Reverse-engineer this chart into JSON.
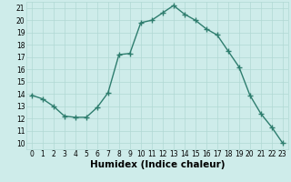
{
  "x": [
    0,
    1,
    2,
    3,
    4,
    5,
    6,
    7,
    8,
    9,
    10,
    11,
    12,
    13,
    14,
    15,
    16,
    17,
    18,
    19,
    20,
    21,
    22,
    23
  ],
  "y": [
    13.9,
    13.6,
    13.0,
    12.2,
    12.1,
    12.1,
    12.9,
    14.1,
    17.2,
    17.3,
    19.8,
    20.0,
    20.6,
    21.2,
    20.5,
    20.0,
    19.3,
    18.8,
    17.5,
    16.2,
    13.9,
    12.4,
    11.3,
    10.0
  ],
  "line_color": "#2e7d6e",
  "marker": "+",
  "marker_size": 4,
  "marker_lw": 1.0,
  "bg_color": "#ceecea",
  "grid_color": "#b0d8d4",
  "xlabel": "Humidex (Indice chaleur)",
  "ylim": [
    9.5,
    21.5
  ],
  "xlim": [
    -0.5,
    23.5
  ],
  "yticks": [
    10,
    11,
    12,
    13,
    14,
    15,
    16,
    17,
    18,
    19,
    20,
    21
  ],
  "xticks": [
    0,
    1,
    2,
    3,
    4,
    5,
    6,
    7,
    8,
    9,
    10,
    11,
    12,
    13,
    14,
    15,
    16,
    17,
    18,
    19,
    20,
    21,
    22,
    23
  ],
  "tick_fontsize": 5.5,
  "xlabel_fontsize": 7.5,
  "line_width": 1.0
}
